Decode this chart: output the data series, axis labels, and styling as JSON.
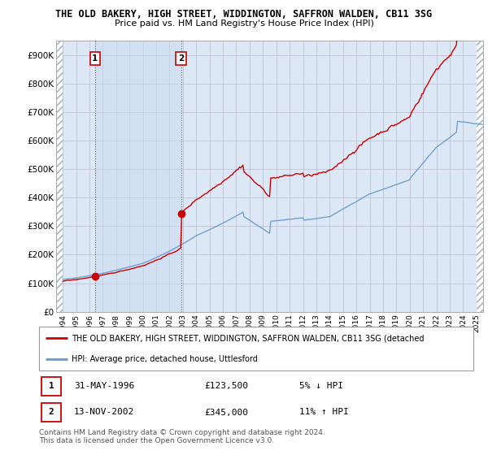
{
  "title": "THE OLD BAKERY, HIGH STREET, WIDDINGTON, SAFFRON WALDEN, CB11 3SG",
  "subtitle": "Price paid vs. HM Land Registry's House Price Index (HPI)",
  "background_color": "#ffffff",
  "plot_bg_color": "#dce8f5",
  "grid_color": "#bbbbcc",
  "purchase1": {
    "date_year": 1996.42,
    "price": 123500,
    "label": "1",
    "date_str": "31-MAY-1996",
    "pct": "5%",
    "dir": "↓"
  },
  "purchase2": {
    "date_year": 2002.87,
    "price": 345000,
    "label": "2",
    "date_str": "13-NOV-2002",
    "pct": "11%",
    "dir": "↑"
  },
  "legend_line1": "THE OLD BAKERY, HIGH STREET, WIDDINGTON, SAFFRON WALDEN, CB11 3SG (detached",
  "legend_line2": "HPI: Average price, detached house, Uttlesford",
  "footer": "Contains HM Land Registry data © Crown copyright and database right 2024.\nThis data is licensed under the Open Government Licence v3.0.",
  "red_line_color": "#cc0000",
  "blue_line_color": "#6699cc",
  "ylim": [
    0,
    950000
  ],
  "yticks": [
    0,
    100000,
    200000,
    300000,
    400000,
    500000,
    600000,
    700000,
    800000,
    900000
  ],
  "ytick_labels": [
    "£0",
    "£100K",
    "£200K",
    "£300K",
    "£400K",
    "£500K",
    "£600K",
    "£700K",
    "£800K",
    "£900K"
  ],
  "xlim_start": 1993.5,
  "xlim_end": 2025.5,
  "xticks": [
    1994,
    1995,
    1996,
    1997,
    1998,
    1999,
    2000,
    2001,
    2002,
    2003,
    2004,
    2005,
    2006,
    2007,
    2008,
    2009,
    2010,
    2011,
    2012,
    2013,
    2014,
    2015,
    2016,
    2017,
    2018,
    2019,
    2020,
    2021,
    2022,
    2023,
    2024,
    2025
  ],
  "hpi_seed": 42,
  "hpi_base": 115000,
  "red_base": 123500,
  "red_base2": 345000
}
